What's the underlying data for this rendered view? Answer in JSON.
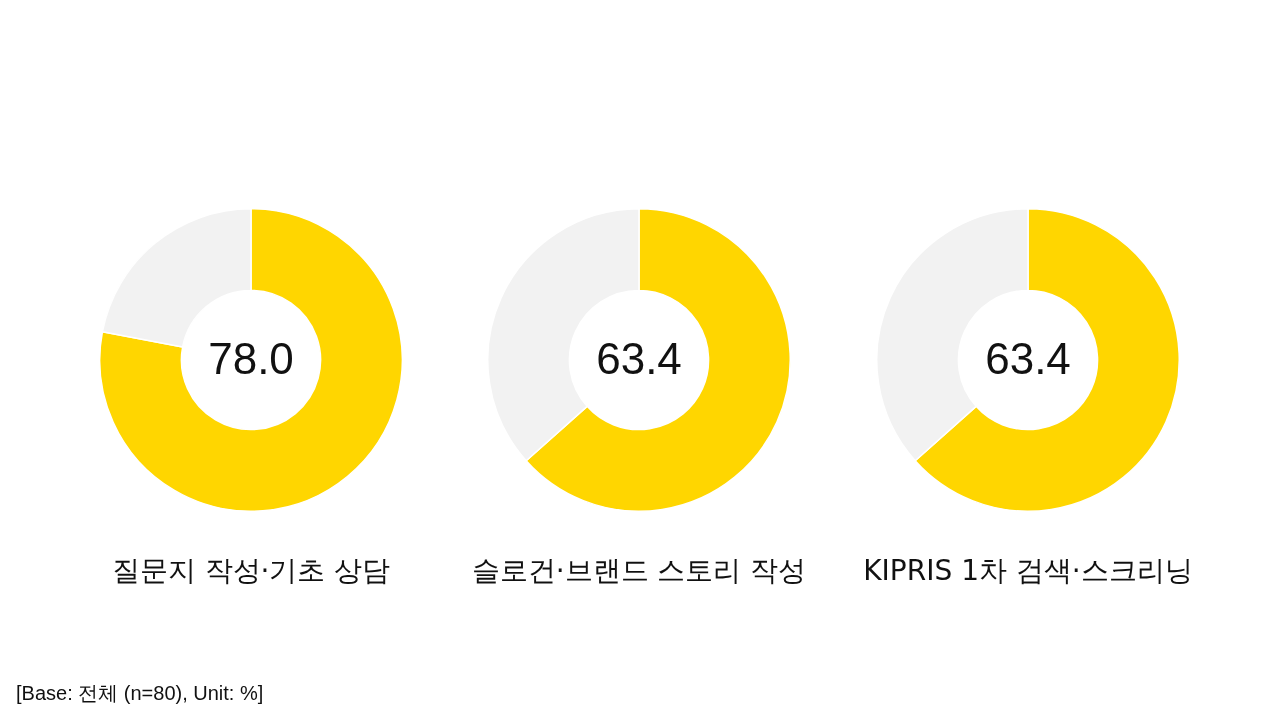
{
  "chart_data": [
    {
      "type": "donut",
      "title": "질문지 작성·기초 상담",
      "categories": [
        null,
        null
      ],
      "values": [
        78.0,
        22.0
      ],
      "colors": [
        "#ffd600",
        "#f2f2f2"
      ],
      "value_labels": [
        "78.0",
        null
      ],
      "annotations": [
        "[Base: 전체 (n=80), Unit: %]"
      ]
    },
    {
      "type": "donut",
      "title": "슬로건·브랜드 스토리 작성",
      "categories": [
        null,
        null
      ],
      "values": [
        63.4,
        36.6
      ],
      "colors": [
        "#ffd600",
        "#f2f2f2"
      ],
      "value_labels": [
        "63.4",
        null
      ]
    },
    {
      "type": "donut",
      "title": "KIPRIS 1차 검색·스크리닝",
      "categories": [
        null,
        null
      ],
      "values": [
        63.4,
        36.6
      ],
      "colors": [
        "#ffd600",
        "#f2f2f2"
      ],
      "value_labels": [
        "63.4",
        null
      ]
    }
  ]
}
